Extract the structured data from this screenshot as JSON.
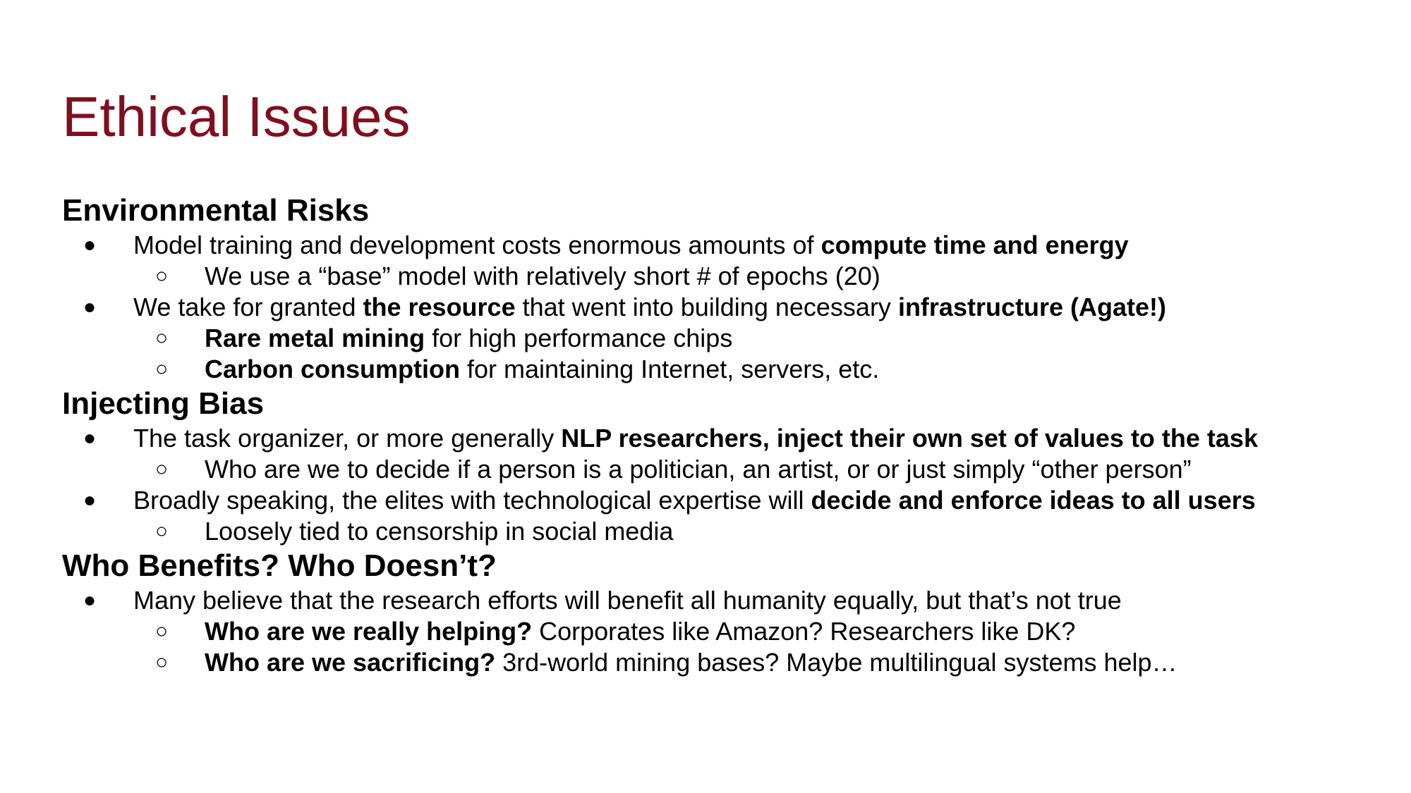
{
  "slide": {
    "title": "Ethical Issues",
    "title_color": "#800f1d",
    "bullet_marker": "●",
    "subbullet_marker": "○",
    "sections": [
      {
        "heading": "Environmental Risks",
        "bullets": [
          {
            "segments": [
              {
                "text": "Model training and development costs enormous amounts of ",
                "bold": false
              },
              {
                "text": "compute time and energy",
                "bold": true
              }
            ],
            "sub": [
              {
                "segments": [
                  {
                    "text": "We use a “base” model with relatively short # of epochs (20)",
                    "bold": false
                  }
                ]
              }
            ]
          },
          {
            "segments": [
              {
                "text": "We take for granted ",
                "bold": false
              },
              {
                "text": "the resource",
                "bold": true
              },
              {
                "text": " that went into building necessary ",
                "bold": false
              },
              {
                "text": "infrastructure (Agate!)",
                "bold": true
              }
            ],
            "sub": [
              {
                "segments": [
                  {
                    "text": "Rare metal mining",
                    "bold": true
                  },
                  {
                    "text": " for high performance chips",
                    "bold": false
                  }
                ]
              },
              {
                "segments": [
                  {
                    "text": "Carbon consumption",
                    "bold": true
                  },
                  {
                    "text": " for maintaining Internet, servers, etc.",
                    "bold": false
                  }
                ]
              }
            ]
          }
        ]
      },
      {
        "heading": "Injecting Bias",
        "bullets": [
          {
            "segments": [
              {
                "text": "The task organizer, or more generally ",
                "bold": false
              },
              {
                "text": "NLP researchers, inject their own set of values to the task",
                "bold": true
              }
            ],
            "sub": [
              {
                "segments": [
                  {
                    "text": "Who are we to decide if a person is a politician, an artist, or or just simply “other person”",
                    "bold": false
                  }
                ]
              }
            ]
          },
          {
            "segments": [
              {
                "text": "Broadly speaking, the elites with technological expertise will ",
                "bold": false
              },
              {
                "text": "decide and enforce ideas to all users",
                "bold": true
              }
            ],
            "sub": [
              {
                "segments": [
                  {
                    "text": "Loosely tied to censorship in social media",
                    "bold": false
                  }
                ]
              }
            ]
          }
        ]
      },
      {
        "heading": "Who Benefits? Who Doesn’t?",
        "bullets": [
          {
            "segments": [
              {
                "text": "Many believe that the research efforts will benefit all humanity equally, but that’s not true",
                "bold": false
              }
            ],
            "sub": [
              {
                "segments": [
                  {
                    "text": "Who are we really helping?",
                    "bold": true
                  },
                  {
                    "text": " Corporates like Amazon? Researchers like DK?",
                    "bold": false
                  }
                ]
              },
              {
                "segments": [
                  {
                    "text": "Who are we sacrificing?",
                    "bold": true
                  },
                  {
                    "text": " 3rd-world mining bases? Maybe multilingual systems help…",
                    "bold": false
                  }
                ]
              }
            ]
          }
        ]
      }
    ]
  }
}
